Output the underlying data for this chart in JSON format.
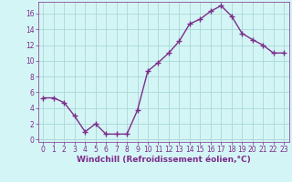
{
  "x": [
    0,
    1,
    2,
    3,
    4,
    5,
    6,
    7,
    8,
    9,
    10,
    11,
    12,
    13,
    14,
    15,
    16,
    17,
    18,
    19,
    20,
    21,
    22,
    23
  ],
  "y": [
    5.3,
    5.3,
    4.7,
    3.0,
    1.0,
    2.0,
    0.7,
    0.7,
    0.7,
    3.7,
    8.7,
    9.8,
    11.0,
    12.5,
    14.7,
    15.3,
    16.3,
    17.0,
    15.7,
    13.5,
    12.7,
    12.0,
    11.0,
    11.0
  ],
  "line_color": "#7b2d8b",
  "marker": "+",
  "markersize": 4,
  "linewidth": 1.0,
  "xlabel": "Windchill (Refroidissement éolien,°C)",
  "xlabel_fontsize": 6.5,
  "background_color": "#d4f5f5",
  "grid_color": "#aad8d8",
  "yticks": [
    0,
    2,
    4,
    6,
    8,
    10,
    12,
    14,
    16
  ],
  "xticks": [
    0,
    1,
    2,
    3,
    4,
    5,
    6,
    7,
    8,
    9,
    10,
    11,
    12,
    13,
    14,
    15,
    16,
    17,
    18,
    19,
    20,
    21,
    22,
    23
  ],
  "ylim": [
    -0.3,
    17.5
  ],
  "xlim": [
    -0.5,
    23.5
  ],
  "tick_fontsize": 5.5,
  "tick_color": "#7b2d8b",
  "spine_color": "#7b2d8b"
}
